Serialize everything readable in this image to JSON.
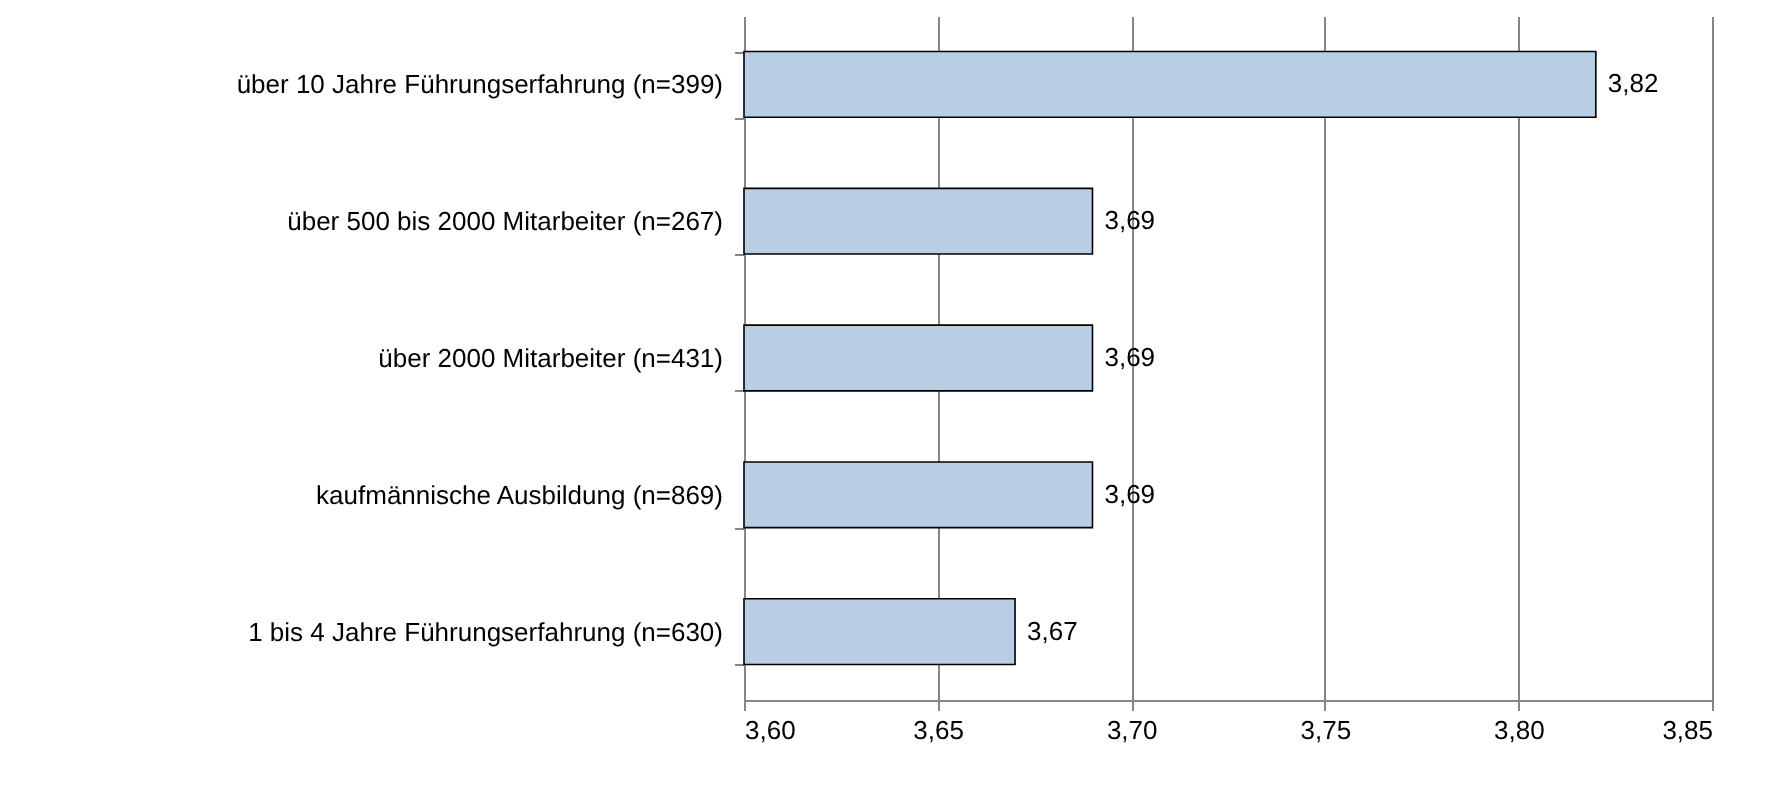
{
  "chart_data": {
    "type": "bar",
    "orientation": "horizontal",
    "categories": [
      "über 10 Jahre Führungserfahrung (n=399)",
      "über 500 bis 2000 Mitarbeiter (n=267)",
      "über 2000 Mitarbeiter (n=431)",
      "kaufmännische Ausbildung (n=869)",
      "1 bis 4 Jahre Führungserfahrung (n=630)"
    ],
    "values": [
      3.82,
      3.69,
      3.69,
      3.69,
      3.67
    ],
    "value_labels": [
      "3,82",
      "3,69",
      "3,69",
      "3,69",
      "3,67"
    ],
    "color": "#b9cde5",
    "xlim": [
      3.6,
      3.85
    ],
    "xticks": [
      {
        "value": 3.6,
        "label": "3,60"
      },
      {
        "value": 3.65,
        "label": "3,65"
      },
      {
        "value": 3.7,
        "label": "3,70"
      },
      {
        "value": 3.75,
        "label": "3,75"
      },
      {
        "value": 3.8,
        "label": "3,80"
      },
      {
        "value": 3.85,
        "label": "3,85"
      }
    ],
    "grid": "x"
  }
}
